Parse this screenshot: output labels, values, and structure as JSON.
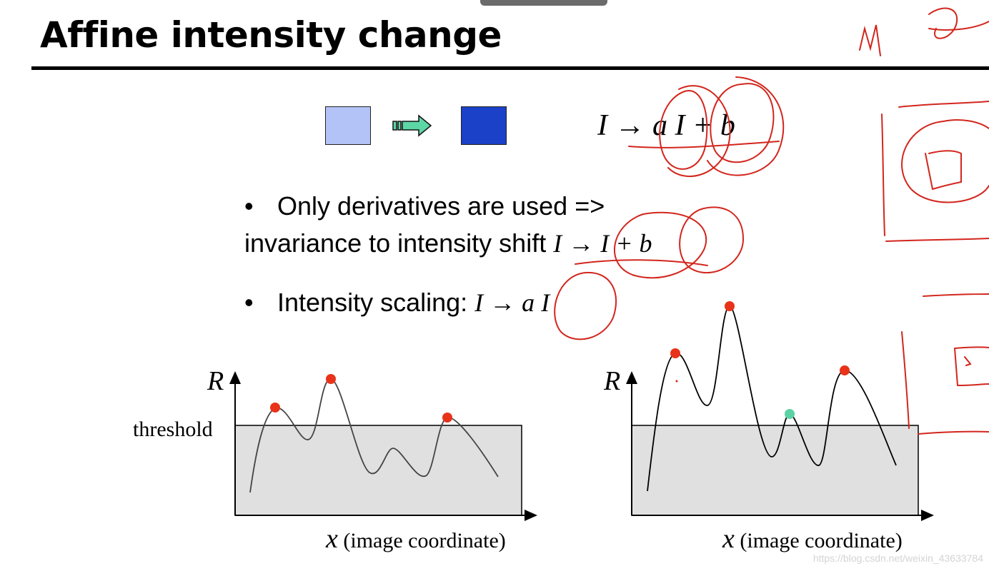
{
  "slide": {
    "title": "Affine intensity change",
    "formula": "I → a I + b",
    "bullets": [
      {
        "marker": "•",
        "line1_text": "Only derivatives are used =>",
        "line2_text": "invariance to intensity shift ",
        "line2_math": "I → I + b"
      },
      {
        "marker": "•",
        "text": "Intensity scaling: ",
        "math": "I → a I"
      }
    ]
  },
  "icons": {
    "square_left": "light-intensity-square",
    "arrow": "right-arrow-icon",
    "square_right": "dark-intensity-square"
  },
  "colors": {
    "square_light": "#b4c3f7",
    "square_dark": "#1b41c8",
    "arrow_fill": "#5dd6a6",
    "peak_marker": "#e8331a",
    "new_peak_marker": "#5cd1a4",
    "threshold_region": "#e0e0e0",
    "annotation_ink": "#d2261d"
  },
  "plots": {
    "left": {
      "y_axis_label": "R",
      "x_label_math": "x",
      "x_label_text": " (image coordinate)",
      "threshold_label": "threshold"
    },
    "right": {
      "y_axis_label": "R",
      "x_label_math": "x",
      "x_label_text": " (image coordinate)"
    }
  },
  "watermark": "https://blog.csdn.net/weixin_43633784"
}
